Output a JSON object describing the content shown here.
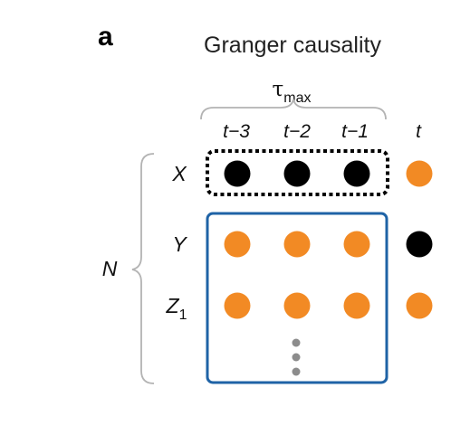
{
  "panel_label": "a",
  "title": "Granger causality",
  "tau": {
    "symbol": "τ",
    "subscript": "max"
  },
  "time_labels": [
    "t−3",
    "t−2",
    "t−1",
    "t"
  ],
  "variables": [
    {
      "name": "X",
      "subscript": ""
    },
    {
      "name": "Y",
      "subscript": ""
    },
    {
      "name": "Z",
      "subscript": "1"
    }
  ],
  "group_label": "N",
  "nodes": [
    [
      "black",
      "black",
      "black",
      "orange"
    ],
    [
      "orange",
      "orange",
      "orange",
      "black"
    ],
    [
      "orange",
      "orange",
      "orange",
      "orange"
    ]
  ],
  "colors": {
    "orange": "#F28A24",
    "black": "#000000",
    "blue_box": "#1F63A6",
    "dotted_box": "#000000",
    "brace": "#B3B3B3",
    "ellipsis": "#8C8C8C"
  }
}
